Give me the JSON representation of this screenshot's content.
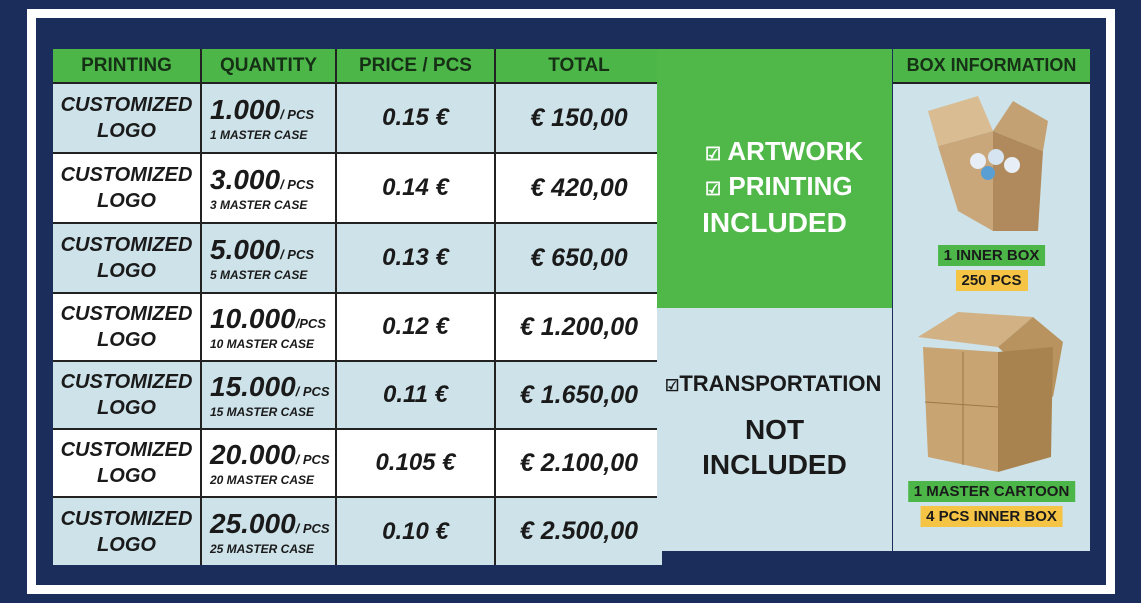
{
  "headers": {
    "printing": "PRINTING",
    "quantity": "QUANTITY",
    "price": "PRICE / PCS",
    "total": "TOTAL",
    "box": "BOX INFORMATION"
  },
  "rows": [
    {
      "printing1": "CUSTOMIZED",
      "printing2": "LOGO",
      "qty": "1.000",
      "unit": "/ PCS",
      "cases": "1 MASTER CASE",
      "price": "0.15 €",
      "total": "€ 150,00"
    },
    {
      "printing1": "CUSTOMIZED",
      "printing2": "LOGO",
      "qty": "3.000",
      "unit": "/ PCS",
      "cases": "3 MASTER CASE",
      "price": "0.14 €",
      "total": "€ 420,00"
    },
    {
      "printing1": "CUSTOMIZED",
      "printing2": "LOGO",
      "qty": "5.000",
      "unit": "/ PCS",
      "cases": "5 MASTER CASE",
      "price": "0.13 €",
      "total": "€ 650,00"
    },
    {
      "printing1": "CUSTOMIZED",
      "printing2": "LOGO",
      "qty": "10.000",
      "unit": "/PCS",
      "cases": "10 MASTER CASE",
      "price": "0.12 €",
      "total": "€ 1.200,00"
    },
    {
      "printing1": "CUSTOMIZED",
      "printing2": "LOGO",
      "qty": "15.000",
      "unit": "/ PCS",
      "cases": "15 MASTER CASE",
      "price": "0.11 €",
      "total": "€ 1.650,00"
    },
    {
      "printing1": "CUSTOMIZED",
      "printing2": "LOGO",
      "qty": "20.000",
      "unit": "/ PCS",
      "cases": "20 MASTER CASE",
      "price": "0.105 €",
      "total": "€ 2.100,00"
    },
    {
      "printing1": "CUSTOMIZED",
      "printing2": "LOGO",
      "qty": "25.000",
      "unit": "/ PCS",
      "cases": "25 MASTER CASE",
      "price": "0.10 €",
      "total": "€ 2.500,00"
    }
  ],
  "included": {
    "item1": "ARTWORK",
    "item2": "PRINTING",
    "label": "INCLUDED",
    "check_icon": "checkbox-checked-icon"
  },
  "not_included": {
    "item": "TRANSPORTATION",
    "label1": "NOT",
    "label2": "INCLUDED"
  },
  "box_info": {
    "inner_box": "1 INNER BOX",
    "inner_pcs": "250 PCS",
    "master": "1 MASTER CARTOON",
    "master_contents": "4 PCS INNER BOX"
  },
  "colors": {
    "navy": "#1b2d5a",
    "green": "#4cb748",
    "light_blue": "#cde2e9",
    "yellow": "#f6c445"
  }
}
